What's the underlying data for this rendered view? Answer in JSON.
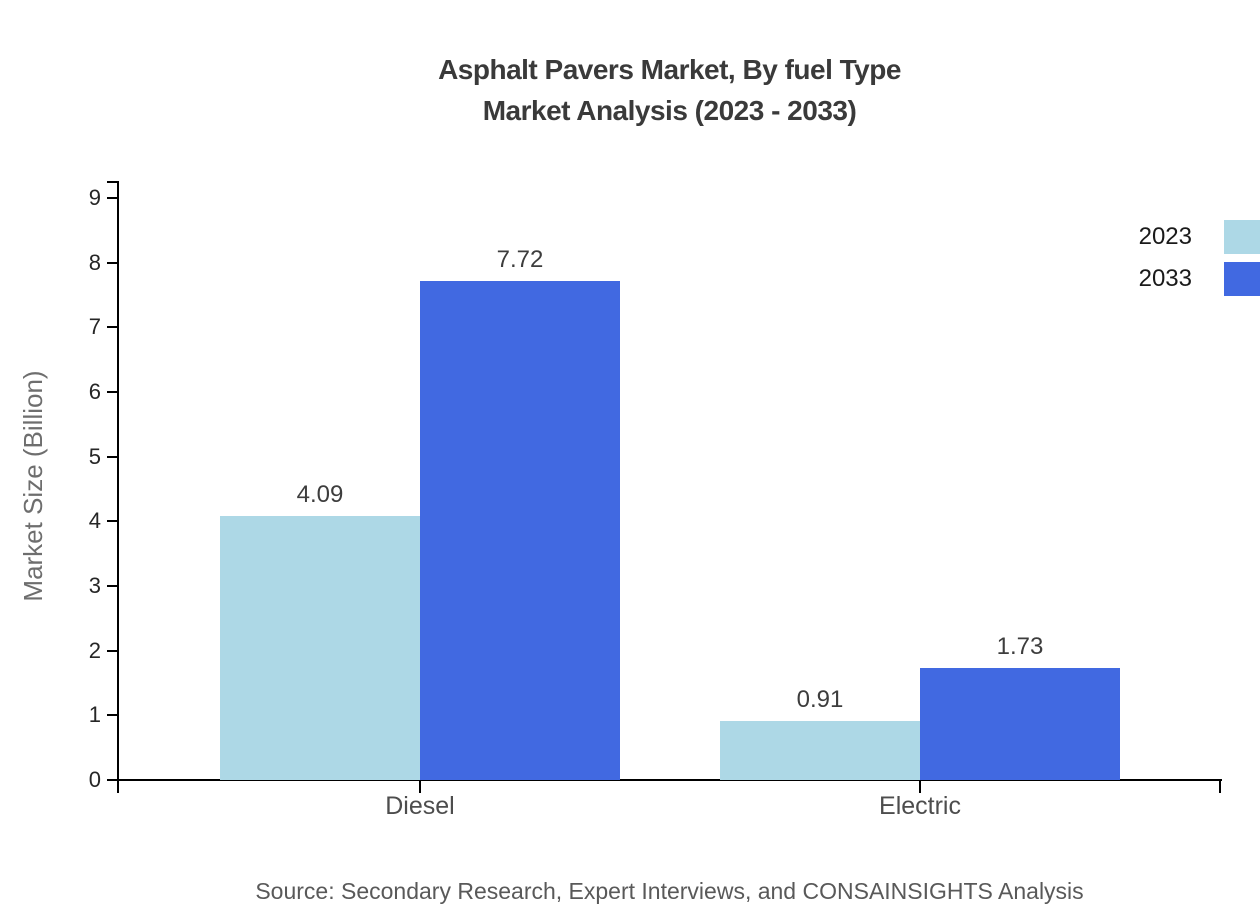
{
  "title": {
    "line1": "Asphalt Pavers Market, By fuel Type",
    "line2": "Market Analysis (2023 - 2033)"
  },
  "source": "Source: Secondary Research, Expert Interviews, and CONSAINSIGHTS Analysis",
  "chart_data": {
    "type": "bar",
    "title": "Asphalt Pavers Market, By fuel Type Market Analysis (2023 - 2033)",
    "categories": [
      "Diesel",
      "Electric"
    ],
    "series": [
      {
        "name": "2023",
        "color": "#ADD8E6",
        "values": [
          4.09,
          0.91
        ]
      },
      {
        "name": "2033",
        "color": "#4169E1",
        "values": [
          7.72,
          1.73
        ]
      }
    ],
    "value_labels": [
      "4.09",
      "7.72",
      "0.91",
      "1.73"
    ],
    "xlabel": "",
    "ylabel": "Market Size (Billion)",
    "ylim": [
      0,
      9
    ],
    "yticks": [
      0,
      1,
      2,
      3,
      4,
      5,
      6,
      7,
      8,
      9
    ],
    "grid": false,
    "legend_position": "top-right",
    "axis_color": "#000000",
    "background_color": "#ffffff"
  }
}
